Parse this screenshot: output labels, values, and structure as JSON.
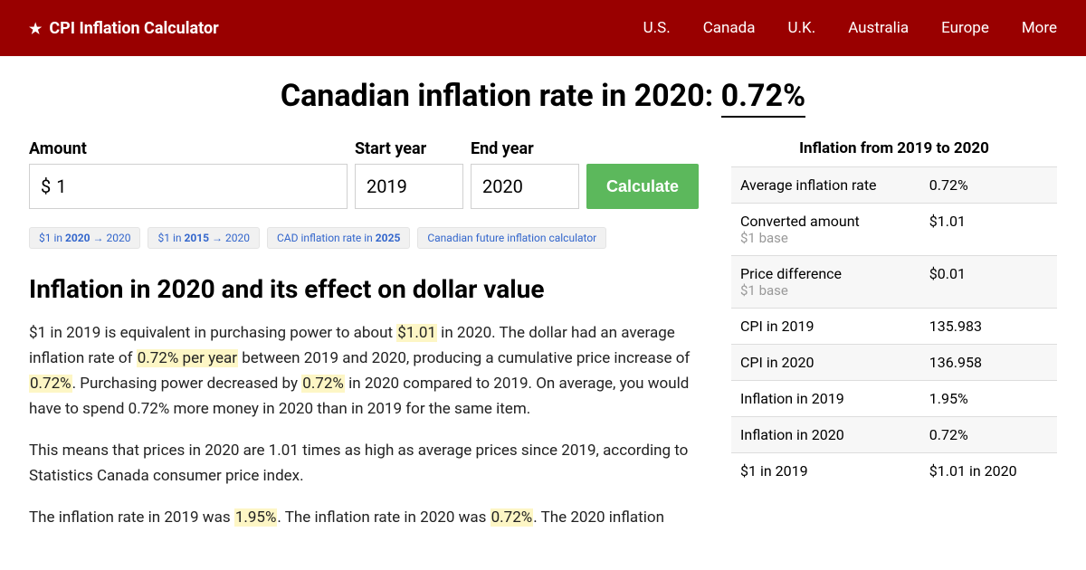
{
  "header": {
    "brand": "CPI Inflation Calculator",
    "nav": [
      "U.S.",
      "Canada",
      "U.K.",
      "Australia",
      "Europe",
      "More"
    ]
  },
  "title": {
    "prefix": "Canadian inflation rate in 2020: ",
    "rate": "0.72%"
  },
  "form": {
    "amount_label": "Amount",
    "currency_symbol": "$",
    "amount_value": "1",
    "start_year_label": "Start year",
    "start_year_value": "2019",
    "end_year_label": "End year",
    "end_year_value": "2020",
    "calculate_label": "Calculate"
  },
  "pills": {
    "p0_a": "$1 in ",
    "p0_b": "2020",
    "p0_c": " → 2020",
    "p1_a": "$1 in ",
    "p1_b": "2015",
    "p1_c": " → 2020",
    "p2_a": "CAD inflation rate in ",
    "p2_b": "2025",
    "p3": "Canadian future inflation calculator"
  },
  "section_heading": "Inflation in 2020 and its effect on dollar value",
  "para1": {
    "t0": "$1 in 2019 is equivalent in purchasing power to about ",
    "h0": "$1.01",
    "t1": " in 2020. The dollar had an average inflation rate of ",
    "h1": "0.72% per year",
    "t2": " between 2019 and 2020, producing a cumulative price increase of ",
    "h2": "0.72%",
    "t3": ". Purchasing power decreased by ",
    "h3": "0.72%",
    "t4": " in 2020 compared to 2019. On average, you would have to spend 0.72% more money in 2020 than in 2019 for the same item."
  },
  "para2": "This means that prices in 2020 are 1.01 times as high as average prices since 2019, according to Statistics Canada consumer price index.",
  "para3": {
    "t0": "The inflation rate in 2019 was ",
    "h0": "1.95%",
    "t1": ". The inflation rate in 2020 was ",
    "h1": "0.72%",
    "t2": ". The 2020 inflation"
  },
  "table": {
    "title": "Inflation from 2019 to 2020",
    "rows": [
      {
        "label": "Average inflation rate",
        "sub": "",
        "value": "0.72%"
      },
      {
        "label": "Converted amount",
        "sub": "$1 base",
        "value": "$1.01"
      },
      {
        "label": "Price difference",
        "sub": "$1 base",
        "value": "$0.01"
      },
      {
        "label": "CPI in 2019",
        "sub": "",
        "value": "135.983"
      },
      {
        "label": "CPI in 2020",
        "sub": "",
        "value": "136.958"
      },
      {
        "label": "Inflation in 2019",
        "sub": "",
        "value": "1.95%"
      },
      {
        "label": "Inflation in 2020",
        "sub": "",
        "value": "0.72%"
      },
      {
        "label": "$1 in 2019",
        "sub": "",
        "value": "$1.01 in 2020"
      }
    ]
  }
}
